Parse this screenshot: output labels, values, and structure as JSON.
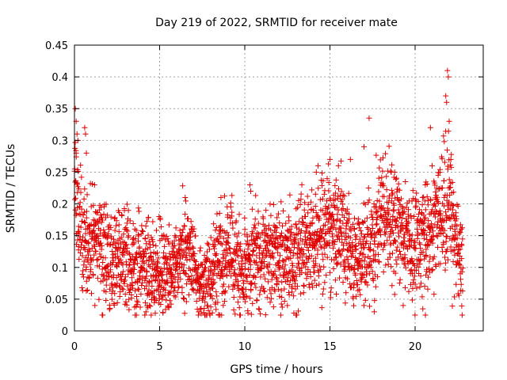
{
  "chart_data": {
    "type": "scatter",
    "title": "Day 219 of 2022, SRMTID for receiver mate",
    "xlabel": "GPS time / hours",
    "ylabel": "SRMTID / TECUs",
    "xlim": [
      0,
      24
    ],
    "ylim": [
      0,
      0.45
    ],
    "x_ticks": [
      0,
      5,
      10,
      15,
      20
    ],
    "x_tick_labels": [
      "0",
      "5",
      "10",
      "15",
      "20"
    ],
    "y_ticks": [
      0,
      0.05,
      0.1,
      0.15,
      0.2,
      0.25,
      0.3,
      0.35,
      0.4,
      0.45
    ],
    "y_tick_labels": [
      "0",
      "0.05",
      "0.1",
      "0.15",
      "0.2",
      "0.25",
      "0.3",
      "0.35",
      "0.4",
      "0.45"
    ],
    "grid": true,
    "marker": "+",
    "color": "#e00000",
    "series": [
      {
        "name": "SRMTID",
        "trend_hours": [
          0,
          0.1,
          0.3,
          0.6,
          1.0,
          1.5,
          2.0,
          3.0,
          4.0,
          5.0,
          6.0,
          6.5,
          7.0,
          7.5,
          8.0,
          9.0,
          10.0,
          11.0,
          12.0,
          13.0,
          14.0,
          15.0,
          15.5,
          16.0,
          16.5,
          17.0,
          17.5,
          18.0,
          19.0,
          20.0,
          21.0,
          21.5,
          22.0,
          22.5,
          22.8
        ],
        "trend_values": [
          0.25,
          0.22,
          0.16,
          0.14,
          0.15,
          0.14,
          0.12,
          0.11,
          0.1,
          0.09,
          0.1,
          0.13,
          0.11,
          0.07,
          0.09,
          0.12,
          0.1,
          0.12,
          0.11,
          0.12,
          0.14,
          0.16,
          0.17,
          0.13,
          0.11,
          0.12,
          0.14,
          0.18,
          0.16,
          0.13,
          0.16,
          0.18,
          0.2,
          0.12,
          0.1
        ],
        "highlights": [
          [
            0.05,
            0.35
          ],
          [
            0.1,
            0.33
          ],
          [
            0.15,
            0.31
          ],
          [
            0.2,
            0.3
          ],
          [
            0.1,
            0.28
          ],
          [
            0.6,
            0.32
          ],
          [
            0.65,
            0.31
          ],
          [
            0.7,
            0.28
          ],
          [
            5.9,
            0.15
          ],
          [
            6.5,
            0.21
          ],
          [
            8.6,
            0.21
          ],
          [
            10.3,
            0.23
          ],
          [
            10.35,
            0.22
          ],
          [
            14.3,
            0.26
          ],
          [
            14.2,
            0.25
          ],
          [
            15.0,
            0.27
          ],
          [
            15.5,
            0.26
          ],
          [
            16.2,
            0.27
          ],
          [
            17.0,
            0.29
          ],
          [
            17.3,
            0.335
          ],
          [
            18.6,
            0.25
          ],
          [
            18.8,
            0.25
          ],
          [
            20.6,
            0.23
          ],
          [
            20.9,
            0.32
          ],
          [
            21.0,
            0.26
          ],
          [
            21.8,
            0.37
          ],
          [
            21.85,
            0.36
          ],
          [
            21.9,
            0.41
          ],
          [
            21.95,
            0.4
          ],
          [
            22.0,
            0.33
          ],
          [
            22.1,
            0.27
          ],
          [
            7.3,
            0.03
          ],
          [
            4.2,
            0.03
          ],
          [
            4.4,
            0.04
          ],
          [
            12.5,
            0.04
          ],
          [
            17.6,
            0.03
          ],
          [
            19.3,
            0.04
          ],
          [
            1.2,
            0.04
          ]
        ],
        "point_count": 2600,
        "seed": 219
      }
    ]
  }
}
